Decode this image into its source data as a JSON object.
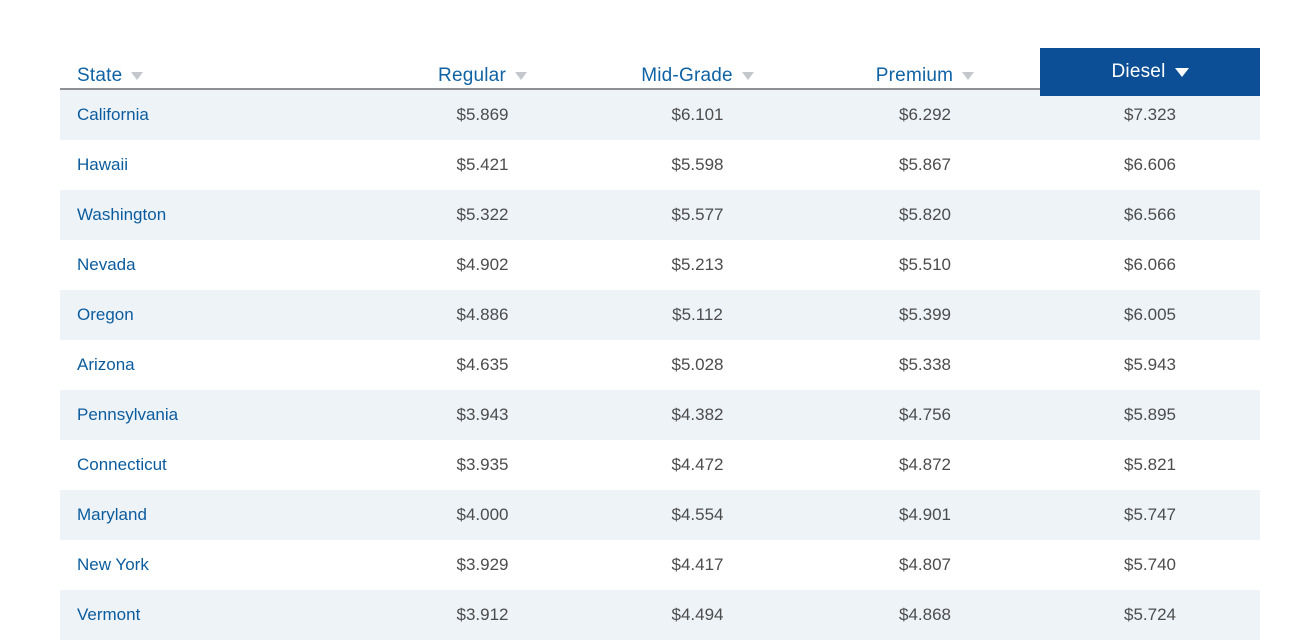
{
  "colors": {
    "header_text_blue": "#0f63a5",
    "active_column_bg": "#0d4f96",
    "active_column_text": "#ffffff",
    "row_stripe": "#eef3f8",
    "state_link_blue": "#0b5c9e",
    "price_text": "#4c4c4c",
    "header_border": "#8e9093",
    "sort_arrow_gray": "#c4c8cc"
  },
  "table": {
    "columns": [
      {
        "key": "state",
        "label": "State",
        "sort_icon": "chevron-down",
        "active": false
      },
      {
        "key": "regular",
        "label": "Regular",
        "sort_icon": "chevron-down",
        "active": false
      },
      {
        "key": "midgrade",
        "label": "Mid-Grade",
        "sort_icon": "chevron-down",
        "active": false
      },
      {
        "key": "premium",
        "label": "Premium",
        "sort_icon": "chevron-down",
        "active": false
      },
      {
        "key": "diesel",
        "label": "Diesel",
        "sort_icon": "chevron-down",
        "active": true,
        "sort_direction": "desc"
      }
    ],
    "rows": [
      {
        "state": "California",
        "regular": "$5.869",
        "midgrade": "$6.101",
        "premium": "$6.292",
        "diesel": "$7.323"
      },
      {
        "state": "Hawaii",
        "regular": "$5.421",
        "midgrade": "$5.598",
        "premium": "$5.867",
        "diesel": "$6.606"
      },
      {
        "state": "Washington",
        "regular": "$5.322",
        "midgrade": "$5.577",
        "premium": "$5.820",
        "diesel": "$6.566"
      },
      {
        "state": "Nevada",
        "regular": "$4.902",
        "midgrade": "$5.213",
        "premium": "$5.510",
        "diesel": "$6.066"
      },
      {
        "state": "Oregon",
        "regular": "$4.886",
        "midgrade": "$5.112",
        "premium": "$5.399",
        "diesel": "$6.005"
      },
      {
        "state": "Arizona",
        "regular": "$4.635",
        "midgrade": "$5.028",
        "premium": "$5.338",
        "diesel": "$5.943"
      },
      {
        "state": "Pennsylvania",
        "regular": "$3.943",
        "midgrade": "$4.382",
        "premium": "$4.756",
        "diesel": "$5.895"
      },
      {
        "state": "Connecticut",
        "regular": "$3.935",
        "midgrade": "$4.472",
        "premium": "$4.872",
        "diesel": "$5.821"
      },
      {
        "state": "Maryland",
        "regular": "$4.000",
        "midgrade": "$4.554",
        "premium": "$4.901",
        "diesel": "$5.747"
      },
      {
        "state": "New York",
        "regular": "$3.929",
        "midgrade": "$4.417",
        "premium": "$4.807",
        "diesel": "$5.740"
      },
      {
        "state": "Vermont",
        "regular": "$3.912",
        "midgrade": "$4.494",
        "premium": "$4.868",
        "diesel": "$5.724"
      }
    ]
  }
}
